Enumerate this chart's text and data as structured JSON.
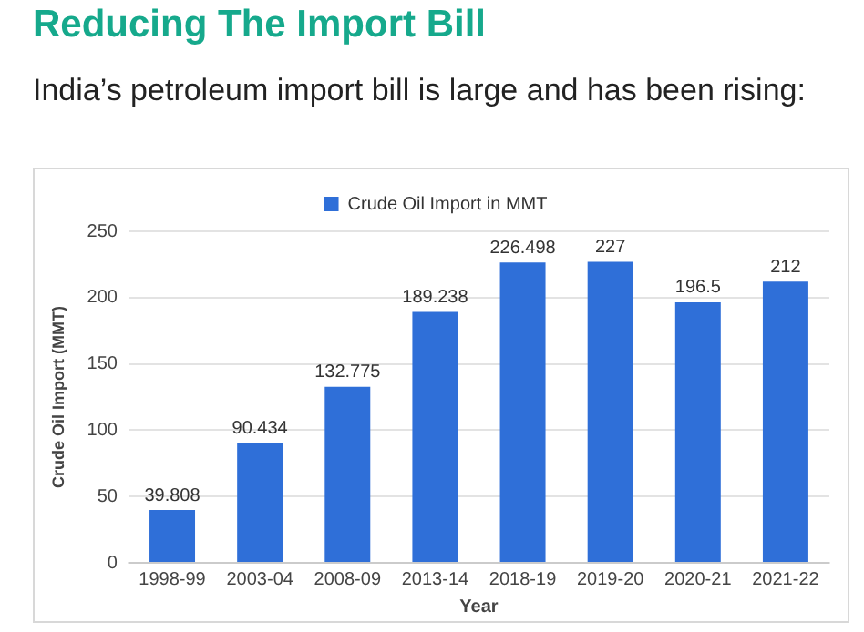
{
  "chart_data": {
    "type": "bar",
    "title": "Reducing The Import Bill",
    "subtitle": "India’s petroleum import bill is large and has been rising:",
    "xlabel": "Year",
    "ylabel": "Crude Oil Import (MMT)",
    "categories": [
      "1998-99",
      "2003-04",
      "2008-09",
      "2013-14",
      "2018-19",
      "2019-20",
      "2020-21",
      "2021-22"
    ],
    "series": [
      {
        "name": "Crude Oil Import in MMT",
        "color": "#2f6fd8",
        "values": [
          39.808,
          90.434,
          132.775,
          189.238,
          226.498,
          227,
          196.5,
          212
        ]
      }
    ],
    "ylim": [
      0,
      250
    ],
    "yticks": [
      0,
      50,
      100,
      150,
      200,
      250
    ],
    "grid": "y",
    "legend": "top",
    "data_labels": true
  }
}
